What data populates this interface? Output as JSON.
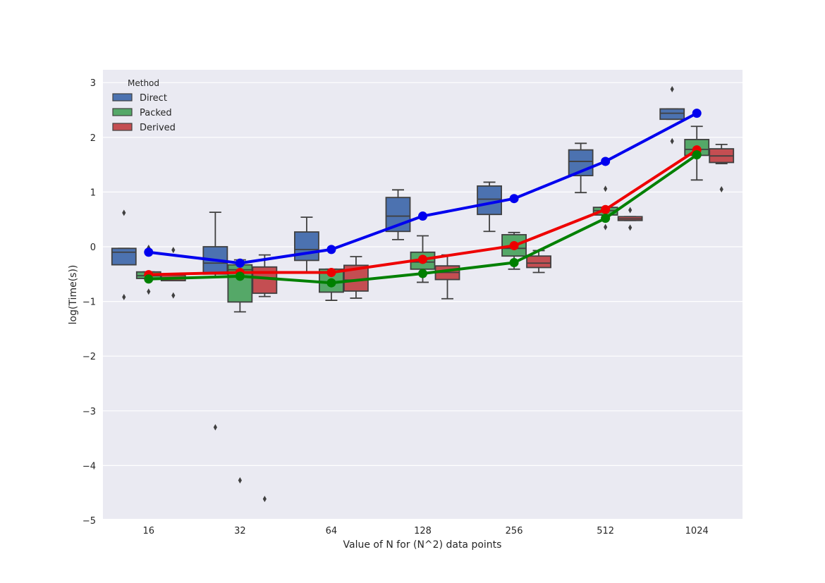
{
  "chart_data": {
    "type": "box",
    "xlabel": "Value of N for (N^2) data points",
    "ylabel": "log(Time(s))",
    "ylim": [
      -5,
      3.3
    ],
    "yticks": [
      3,
      2,
      1,
      0,
      -1,
      -2,
      -3,
      -4,
      -5
    ],
    "ytick_labels": [
      "3",
      "2",
      "1",
      "0",
      "−1",
      "−2",
      "−3",
      "−4",
      "−5"
    ],
    "categories": [
      "16",
      "32",
      "64",
      "128",
      "256",
      "512",
      "1024"
    ],
    "grid": true,
    "legend": {
      "title": "Method",
      "placement": "upper-left",
      "entries": [
        "Direct",
        "Packed",
        "Derived"
      ]
    },
    "series": [
      {
        "name": "Direct",
        "box_color": "#4c72b0",
        "boxes": [
          {
            "min": -0.33,
            "q1": -0.33,
            "median": -0.1,
            "q3": -0.03,
            "max": -0.03,
            "outliers": [
              0.62,
              -0.92
            ]
          },
          {
            "min": -0.55,
            "q1": -0.5,
            "median": -0.3,
            "q3": 0.0,
            "max": 0.63,
            "outliers": [
              -3.3
            ]
          },
          {
            "min": -0.47,
            "q1": -0.25,
            "median": -0.05,
            "q3": 0.27,
            "max": 0.54,
            "outliers": []
          },
          {
            "min": 0.13,
            "q1": 0.28,
            "median": 0.56,
            "q3": 0.9,
            "max": 1.04,
            "outliers": []
          },
          {
            "min": 0.28,
            "q1": 0.59,
            "median": 0.87,
            "q3": 1.11,
            "max": 1.18,
            "outliers": []
          },
          {
            "min": 0.99,
            "q1": 1.3,
            "median": 1.56,
            "q3": 1.77,
            "max": 1.89,
            "outliers": []
          },
          {
            "min": 2.33,
            "q1": 2.33,
            "median": 2.44,
            "q3": 2.52,
            "max": 2.52,
            "outliers": [
              2.88,
              1.93
            ]
          }
        ]
      },
      {
        "name": "Packed",
        "box_color": "#55a868",
        "boxes": [
          {
            "min": -0.58,
            "q1": -0.58,
            "median": -0.53,
            "q3": -0.46,
            "max": -0.46,
            "outliers": [
              -0.02,
              -0.82
            ]
          },
          {
            "min": -1.19,
            "q1": -1.01,
            "median": -0.42,
            "q3": -0.33,
            "max": -0.24,
            "outliers": [
              -4.27
            ]
          },
          {
            "min": -0.98,
            "q1": -0.83,
            "median": -0.65,
            "q3": -0.41,
            "max": -0.41,
            "outliers": []
          },
          {
            "min": -0.65,
            "q1": -0.41,
            "median": -0.28,
            "q3": -0.1,
            "max": 0.2,
            "outliers": []
          },
          {
            "min": -0.41,
            "q1": -0.17,
            "median": -0.03,
            "q3": 0.22,
            "max": 0.26,
            "outliers": []
          },
          {
            "min": 0.58,
            "q1": 0.58,
            "median": 0.66,
            "q3": 0.72,
            "max": 0.72,
            "outliers": [
              1.06,
              0.36
            ]
          },
          {
            "min": 1.22,
            "q1": 1.67,
            "median": 1.78,
            "q3": 1.96,
            "max": 2.2,
            "outliers": []
          }
        ]
      },
      {
        "name": "Derived",
        "box_color": "#c44e52",
        "boxes": [
          {
            "min": -0.62,
            "q1": -0.62,
            "median": -0.58,
            "q3": -0.52,
            "max": -0.52,
            "outliers": [
              -0.06,
              -0.89
            ]
          },
          {
            "min": -0.91,
            "q1": -0.85,
            "median": -0.57,
            "q3": -0.37,
            "max": -0.15,
            "outliers": [
              -4.61
            ]
          },
          {
            "min": -0.94,
            "q1": -0.81,
            "median": -0.61,
            "q3": -0.34,
            "max": -0.18,
            "outliers": []
          },
          {
            "min": -0.95,
            "q1": -0.6,
            "median": -0.47,
            "q3": -0.35,
            "max": -0.15,
            "outliers": []
          },
          {
            "min": -0.47,
            "q1": -0.38,
            "median": -0.3,
            "q3": -0.17,
            "max": -0.07,
            "outliers": []
          },
          {
            "min": 0.48,
            "q1": 0.48,
            "median": 0.51,
            "q3": 0.55,
            "max": 0.55,
            "outliers": [
              0.67,
              0.35
            ]
          },
          {
            "min": 1.52,
            "q1": 1.54,
            "median": 1.66,
            "q3": 1.79,
            "max": 1.87,
            "outliers": [
              1.05
            ]
          }
        ]
      }
    ],
    "trend_lines": [
      {
        "name": "Direct",
        "color": "#0000ee",
        "values": [
          -0.1,
          -0.3,
          -0.05,
          0.56,
          0.88,
          1.56,
          2.44
        ]
      },
      {
        "name": "Derived",
        "color": "#ee0000",
        "values": [
          -0.51,
          -0.47,
          -0.47,
          -0.23,
          0.02,
          0.68,
          1.77
        ]
      },
      {
        "name": "Packed",
        "color": "#008000",
        "values": [
          -0.59,
          -0.54,
          -0.66,
          -0.49,
          -0.29,
          0.52,
          1.68
        ]
      }
    ]
  }
}
